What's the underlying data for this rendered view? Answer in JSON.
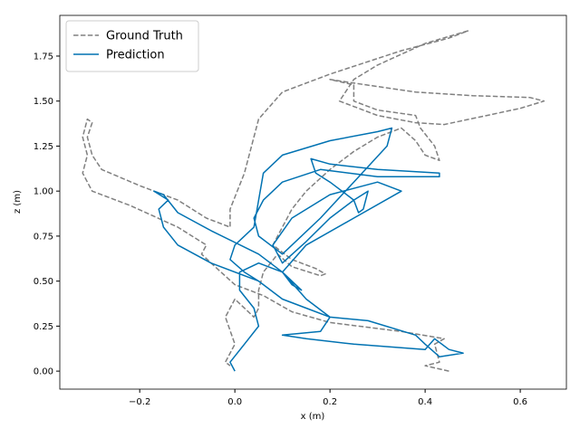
{
  "chart_data": {
    "type": "line",
    "xlabel": "x (m)",
    "ylabel": "z (m)",
    "xlim": [
      -0.368,
      0.697
    ],
    "ylim": [
      -0.1,
      1.976
    ],
    "xticks": [
      {
        "value": -0.2,
        "label": "−0.2"
      },
      {
        "value": 0,
        "label": "0.0"
      },
      {
        "value": 0.2,
        "label": "0.2"
      },
      {
        "value": 0.4,
        "label": "0.4"
      },
      {
        "value": 0.6,
        "label": "0.6"
      }
    ],
    "yticks": [
      {
        "value": 0,
        "label": "0.00"
      },
      {
        "value": 0.25,
        "label": "0.25"
      },
      {
        "value": 0.5,
        "label": "0.50"
      },
      {
        "value": 0.75,
        "label": "0.75"
      },
      {
        "value": 1,
        "label": "1.00"
      },
      {
        "value": 1.25,
        "label": "1.25"
      },
      {
        "value": 1.5,
        "label": "1.50"
      },
      {
        "value": 1.75,
        "label": "1.75"
      }
    ],
    "grid": false,
    "legend": "upper left",
    "series": [
      {
        "name": "Ground Truth",
        "color": "#808080",
        "linestyle": "dashed",
        "x": [
          0.45,
          0.4,
          0.43,
          0.42,
          0.44,
          0.35,
          0.2,
          0.12,
          0.06,
          0.0,
          -0.05,
          -0.07,
          -0.06,
          -0.12,
          -0.22,
          -0.3,
          -0.32,
          -0.31,
          -0.32,
          -0.31,
          -0.3,
          -0.31,
          -0.3,
          -0.28,
          -0.2,
          -0.12,
          -0.06,
          -0.01,
          -0.01,
          0.02,
          0.05,
          0.1,
          0.2,
          0.35,
          0.45,
          0.49,
          0.4,
          0.3,
          0.25,
          0.22,
          0.3,
          0.38,
          0.44,
          0.53,
          0.6,
          0.65,
          0.62,
          0.5,
          0.38,
          0.25,
          0.2,
          0.25,
          0.25,
          0.3,
          0.38,
          0.39,
          0.42,
          0.43,
          0.4,
          0.38,
          0.35,
          0.3,
          0.25,
          0.2,
          0.15,
          0.12,
          0.1,
          0.08,
          0.12,
          0.17,
          0.19,
          0.18,
          0.12,
          0.09,
          0.06,
          0.05,
          0.05,
          0.04,
          0.0,
          -0.02,
          0.0,
          -0.02,
          -0.01
        ],
        "values": [
          0.0,
          0.03,
          0.05,
          0.15,
          0.18,
          0.22,
          0.27,
          0.33,
          0.42,
          0.48,
          0.6,
          0.65,
          0.7,
          0.8,
          0.92,
          1.0,
          1.1,
          1.2,
          1.3,
          1.4,
          1.38,
          1.3,
          1.2,
          1.12,
          1.03,
          0.95,
          0.85,
          0.8,
          0.9,
          1.1,
          1.4,
          1.55,
          1.65,
          1.78,
          1.85,
          1.89,
          1.82,
          1.7,
          1.62,
          1.5,
          1.42,
          1.38,
          1.37,
          1.42,
          1.46,
          1.5,
          1.52,
          1.53,
          1.55,
          1.6,
          1.62,
          1.59,
          1.5,
          1.45,
          1.42,
          1.35,
          1.25,
          1.17,
          1.2,
          1.28,
          1.35,
          1.3,
          1.22,
          1.12,
          1.0,
          0.9,
          0.8,
          0.7,
          0.62,
          0.57,
          0.54,
          0.53,
          0.58,
          0.65,
          0.55,
          0.45,
          0.35,
          0.3,
          0.4,
          0.3,
          0.15,
          0.05,
          0.03
        ]
      },
      {
        "name": "Prediction",
        "color": "#0072b2",
        "linestyle": "solid",
        "x": [
          0.0,
          -0.01,
          0.02,
          0.05,
          0.04,
          0.01,
          0.01,
          0.05,
          0.1,
          0.15,
          0.2,
          0.18,
          0.1,
          0.15,
          0.25,
          0.3,
          0.4,
          0.42,
          0.45,
          0.48,
          0.43,
          0.4,
          0.38,
          0.28,
          0.2,
          0.15,
          0.1,
          0.05,
          -0.05,
          -0.12,
          -0.15,
          -0.16,
          -0.14,
          -0.17,
          -0.15,
          -0.12,
          -0.05,
          0.05,
          0.1,
          0.14,
          0.12,
          0.1,
          0.15,
          0.25,
          0.35,
          0.3,
          0.2,
          0.12,
          0.08,
          0.1,
          0.15,
          0.2,
          0.25,
          0.28,
          0.27,
          0.26,
          0.25,
          0.2,
          0.17,
          0.16,
          0.2,
          0.3,
          0.43,
          0.43,
          0.3,
          0.18,
          0.1,
          0.06,
          0.04,
          0.05,
          0.1,
          0.18,
          0.25,
          0.32,
          0.33,
          0.3,
          0.2,
          0.1,
          0.06,
          0.05,
          0.04,
          0.0,
          -0.01,
          0.02,
          0.05
        ],
        "values": [
          0.0,
          0.05,
          0.15,
          0.25,
          0.35,
          0.45,
          0.55,
          0.6,
          0.55,
          0.4,
          0.3,
          0.22,
          0.2,
          0.18,
          0.15,
          0.14,
          0.12,
          0.18,
          0.12,
          0.1,
          0.08,
          0.15,
          0.2,
          0.28,
          0.3,
          0.35,
          0.4,
          0.5,
          0.6,
          0.7,
          0.8,
          0.9,
          0.95,
          1.0,
          0.98,
          0.88,
          0.78,
          0.65,
          0.55,
          0.45,
          0.48,
          0.55,
          0.7,
          0.85,
          1.0,
          1.05,
          0.98,
          0.85,
          0.7,
          0.6,
          0.72,
          0.85,
          0.95,
          1.0,
          0.9,
          0.88,
          0.95,
          1.05,
          1.1,
          1.18,
          1.15,
          1.12,
          1.1,
          1.08,
          1.08,
          1.12,
          1.05,
          0.95,
          0.85,
          0.75,
          0.65,
          0.85,
          1.05,
          1.25,
          1.35,
          1.33,
          1.28,
          1.2,
          1.1,
          0.95,
          0.8,
          0.7,
          0.62,
          0.55,
          0.5
        ]
      }
    ]
  }
}
